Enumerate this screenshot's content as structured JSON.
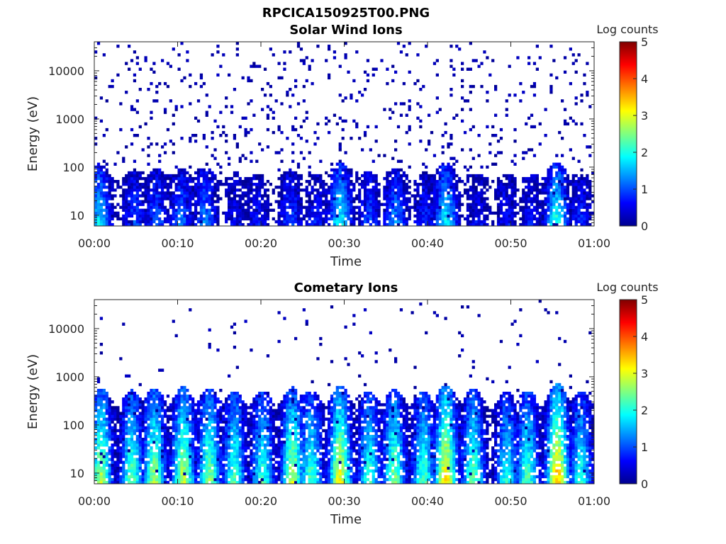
{
  "figure": {
    "title": "RPCICA150925T00.PNG"
  },
  "chart_data": [
    {
      "type": "heatmap",
      "title": "Solar Wind Ions",
      "xlabel": "Time",
      "ylabel": "Energy (eV)",
      "x_ticks": [
        "00:00",
        "00:10",
        "00:20",
        "00:30",
        "00:40",
        "00:50",
        "01:00"
      ],
      "xlim": [
        "00:00",
        "01:00"
      ],
      "y_scale": "log",
      "y_ticks": [
        "10",
        "100",
        "1000",
        "10000"
      ],
      "ylim_eV": [
        6,
        40000
      ],
      "colorbar": {
        "label": "Log counts",
        "ticks": [
          "0",
          "1",
          "2",
          "3",
          "4",
          "5"
        ],
        "range": [
          0,
          5
        ],
        "colormap": "jet"
      },
      "background": "#ffffff",
      "grid": false,
      "columns": 180,
      "rows": 64,
      "intensity_profile": {
        "high_energy_scatter_density": 0.09,
        "low_energy_band_eV": [
          6,
          80
        ],
        "burst_times_min": [
          0.6,
          4.8,
          7.5,
          10.4,
          13.3,
          17.0,
          19.7,
          23.5,
          26.6,
          29.5,
          33.0,
          36.2,
          39.7,
          42.2,
          46.0,
          49.5,
          52.5,
          55.5,
          58.3
        ],
        "burst_peak_log_counts": [
          1.8,
          1.0,
          1.1,
          1.2,
          1.3,
          0.6,
          0.7,
          1.0,
          0.7,
          2.0,
          1.0,
          1.3,
          0.8,
          1.9,
          0.6,
          0.7,
          0.7,
          2.1,
          0.8
        ]
      },
      "seed": 11
    },
    {
      "type": "heatmap",
      "title": "Cometary Ions",
      "xlabel": "Time",
      "ylabel": "Energy (eV)",
      "x_ticks": [
        "00:00",
        "00:10",
        "00:20",
        "00:30",
        "00:40",
        "00:50",
        "01:00"
      ],
      "xlim": [
        "00:00",
        "01:00"
      ],
      "y_scale": "log",
      "y_ticks": [
        "10",
        "100",
        "1000",
        "10000"
      ],
      "ylim_eV": [
        6,
        40000
      ],
      "colorbar": {
        "label": "Log counts",
        "ticks": [
          "0",
          "1",
          "2",
          "3",
          "4",
          "5"
        ],
        "range": [
          0,
          5
        ],
        "colormap": "jet"
      },
      "background": "#ffffff",
      "grid": false,
      "columns": 180,
      "rows": 64,
      "intensity_profile": {
        "high_energy_scatter_density": 0.025,
        "low_energy_band_eV": [
          6,
          300
        ],
        "burst_times_min": [
          0.8,
          4.5,
          7.2,
          10.7,
          13.8,
          16.8,
          20.2,
          23.8,
          26.0,
          29.5,
          33.0,
          36.0,
          39.5,
          42.2,
          45.5,
          49.5,
          52.0,
          55.6,
          58.4
        ],
        "burst_peak_log_counts": [
          2.8,
          2.4,
          2.7,
          2.9,
          2.6,
          2.3,
          2.2,
          2.9,
          2.3,
          3.2,
          2.2,
          2.6,
          2.3,
          3.4,
          2.5,
          2.0,
          2.3,
          3.6,
          2.1
        ]
      },
      "seed": 29
    }
  ]
}
